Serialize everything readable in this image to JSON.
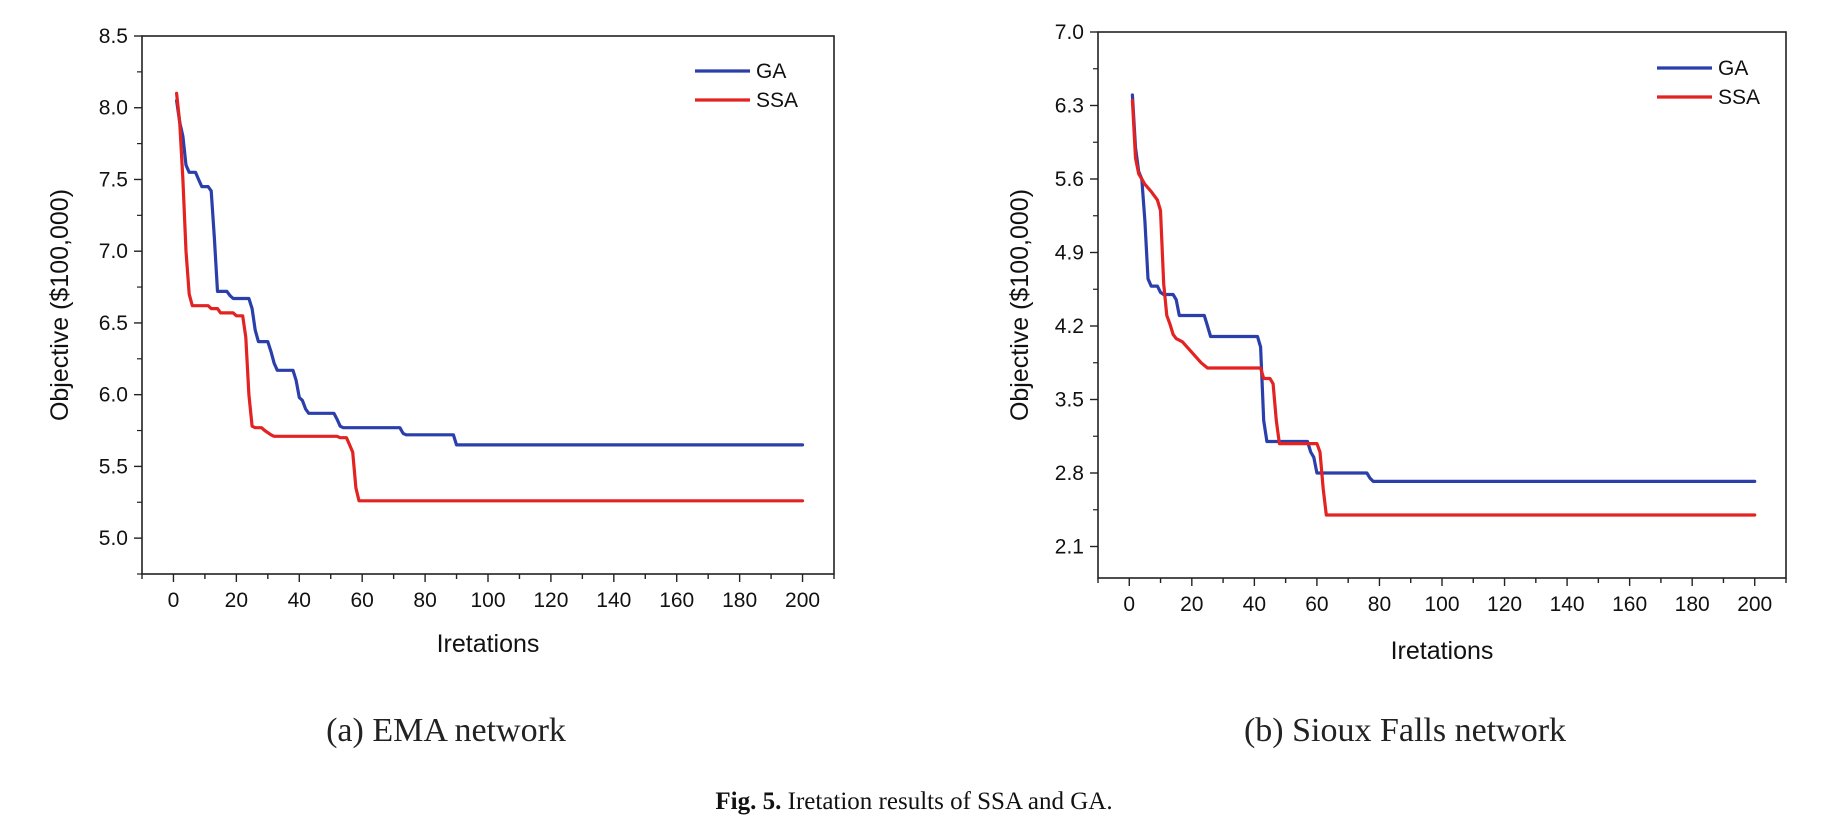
{
  "figure": {
    "caption_label": "Fig. 5.",
    "caption_text": "Iretation results of SSA and GA."
  },
  "chart_data": [
    {
      "type": "line",
      "subcaption": "(a) EMA network",
      "xlabel": "Iretations",
      "ylabel": "Objective ($100,000)",
      "xlim": [
        -10,
        210
      ],
      "ylim": [
        4.75,
        8.5
      ],
      "xticks": [
        0,
        20,
        40,
        60,
        80,
        100,
        120,
        140,
        160,
        180,
        200
      ],
      "yticks": [
        5.0,
        5.5,
        6.0,
        6.5,
        7.0,
        7.5,
        8.0,
        8.5
      ],
      "ytick_labels": [
        "5.0",
        "5.5",
        "6.0",
        "6.5",
        "7.0",
        "7.5",
        "8.0",
        "8.5"
      ],
      "legend_position": "top-right",
      "series": [
        {
          "name": "GA",
          "color": "#2b3fab",
          "points": [
            [
              1,
              8.05
            ],
            [
              2,
              7.9
            ],
            [
              3,
              7.8
            ],
            [
              4,
              7.6
            ],
            [
              5,
              7.55
            ],
            [
              7,
              7.55
            ],
            [
              8,
              7.5
            ],
            [
              9,
              7.45
            ],
            [
              11,
              7.45
            ],
            [
              12,
              7.42
            ],
            [
              13,
              7.1
            ],
            [
              14,
              6.72
            ],
            [
              17,
              6.72
            ],
            [
              18,
              6.69
            ],
            [
              19,
              6.67
            ],
            [
              24,
              6.67
            ],
            [
              25,
              6.6
            ],
            [
              26,
              6.45
            ],
            [
              27,
              6.37
            ],
            [
              30,
              6.37
            ],
            [
              31,
              6.3
            ],
            [
              32,
              6.22
            ],
            [
              33,
              6.17
            ],
            [
              38,
              6.17
            ],
            [
              39,
              6.1
            ],
            [
              40,
              5.98
            ],
            [
              41,
              5.96
            ],
            [
              42,
              5.9
            ],
            [
              43,
              5.87
            ],
            [
              51,
              5.87
            ],
            [
              52,
              5.83
            ],
            [
              53,
              5.78
            ],
            [
              54,
              5.77
            ],
            [
              72,
              5.77
            ],
            [
              73,
              5.73
            ],
            [
              74,
              5.72
            ],
            [
              89,
              5.72
            ],
            [
              90,
              5.65
            ],
            [
              200,
              5.65
            ]
          ]
        },
        {
          "name": "SSA",
          "color": "#e32222",
          "points": [
            [
              1,
              8.1
            ],
            [
              2,
              7.9
            ],
            [
              3,
              7.5
            ],
            [
              4,
              7.0
            ],
            [
              5,
              6.7
            ],
            [
              6,
              6.62
            ],
            [
              11,
              6.62
            ],
            [
              12,
              6.6
            ],
            [
              14,
              6.6
            ],
            [
              15,
              6.57
            ],
            [
              19,
              6.57
            ],
            [
              20,
              6.55
            ],
            [
              22,
              6.55
            ],
            [
              23,
              6.4
            ],
            [
              24,
              6.0
            ],
            [
              25,
              5.78
            ],
            [
              26,
              5.77
            ],
            [
              28,
              5.77
            ],
            [
              29,
              5.75
            ],
            [
              31,
              5.72
            ],
            [
              32,
              5.71
            ],
            [
              52,
              5.71
            ],
            [
              53,
              5.7
            ],
            [
              55,
              5.7
            ],
            [
              56,
              5.65
            ],
            [
              57,
              5.6
            ],
            [
              58,
              5.35
            ],
            [
              59,
              5.26
            ],
            [
              200,
              5.26
            ]
          ]
        }
      ]
    },
    {
      "type": "line",
      "subcaption": "(b) Sioux Falls network",
      "xlabel": "Iretations",
      "ylabel": "Objective ($100,000)",
      "xlim": [
        -10,
        210
      ],
      "ylim": [
        1.8,
        7.0
      ],
      "xticks": [
        0,
        20,
        40,
        60,
        80,
        100,
        120,
        140,
        160,
        180,
        200
      ],
      "yticks": [
        2.1,
        2.8,
        3.5,
        4.2,
        4.9,
        5.6,
        6.3,
        7.0
      ],
      "ytick_labels": [
        "2.1",
        "2.8",
        "3.5",
        "4.2",
        "4.9",
        "5.6",
        "6.3",
        "7.0"
      ],
      "legend_position": "top-right",
      "series": [
        {
          "name": "GA",
          "color": "#2b3fab",
          "points": [
            [
              1,
              6.4
            ],
            [
              2,
              5.9
            ],
            [
              3,
              5.67
            ],
            [
              4,
              5.6
            ],
            [
              5,
              5.2
            ],
            [
              6,
              4.65
            ],
            [
              7,
              4.58
            ],
            [
              9,
              4.58
            ],
            [
              10,
              4.52
            ],
            [
              11,
              4.5
            ],
            [
              14,
              4.5
            ],
            [
              15,
              4.45
            ],
            [
              16,
              4.3
            ],
            [
              24,
              4.3
            ],
            [
              25,
              4.2
            ],
            [
              26,
              4.1
            ],
            [
              41,
              4.1
            ],
            [
              42,
              4.0
            ],
            [
              43,
              3.3
            ],
            [
              44,
              3.1
            ],
            [
              57,
              3.1
            ],
            [
              58,
              3.0
            ],
            [
              59,
              2.95
            ],
            [
              60,
              2.8
            ],
            [
              76,
              2.8
            ],
            [
              77,
              2.75
            ],
            [
              78,
              2.72
            ],
            [
              200,
              2.72
            ]
          ]
        },
        {
          "name": "SSA",
          "color": "#e32222",
          "points": [
            [
              1,
              6.35
            ],
            [
              2,
              5.8
            ],
            [
              3,
              5.65
            ],
            [
              5,
              5.55
            ],
            [
              7,
              5.48
            ],
            [
              9,
              5.4
            ],
            [
              10,
              5.3
            ],
            [
              11,
              4.6
            ],
            [
              12,
              4.3
            ],
            [
              13,
              4.22
            ],
            [
              14,
              4.12
            ],
            [
              15,
              4.08
            ],
            [
              17,
              4.05
            ],
            [
              20,
              3.95
            ],
            [
              23,
              3.85
            ],
            [
              25,
              3.8
            ],
            [
              42,
              3.8
            ],
            [
              43,
              3.7
            ],
            [
              45,
              3.7
            ],
            [
              46,
              3.65
            ],
            [
              47,
              3.3
            ],
            [
              48,
              3.08
            ],
            [
              60,
              3.08
            ],
            [
              61,
              3.0
            ],
            [
              62,
              2.65
            ],
            [
              63,
              2.4
            ],
            [
              200,
              2.4
            ]
          ]
        }
      ]
    }
  ]
}
